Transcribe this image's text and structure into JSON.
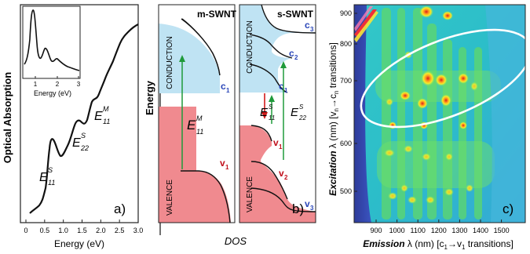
{
  "panel_a": {
    "ylabel": "Optical Absorption",
    "xlabel": "Energy (eV)",
    "panel_label": "a)",
    "xticks": [
      "0",
      "0.5",
      "1.0",
      "1.5",
      "2.0",
      "2.5",
      "3.0"
    ],
    "inset": {
      "xlabel": "Energy (eV)",
      "xticks": [
        "1",
        "2",
        "3"
      ]
    },
    "peaks": [
      {
        "label": "E",
        "sup": "S",
        "sub": "11"
      },
      {
        "label": "E",
        "sup": "S",
        "sub": "22"
      },
      {
        "label": "E",
        "sup": "M",
        "sub": "11"
      }
    ]
  },
  "panel_b": {
    "energy_label": "Energy",
    "dos_label": "DOS",
    "panel_label": "b)",
    "left": {
      "title": "m-SWNT",
      "conduction": "CONDUCTION",
      "valence": "VALENCE",
      "c1": "c",
      "c1_sub": "1",
      "v1": "v",
      "v1_sub": "1",
      "transition": {
        "label": "E",
        "sup": "M",
        "sub": "11"
      }
    },
    "right": {
      "title": "s-SWNT",
      "conduction": "CONDUCTION",
      "valence": "VALENCE",
      "c_levels": [
        {
          "l": "c",
          "s": "1"
        },
        {
          "l": "c",
          "s": "2"
        },
        {
          "l": "c",
          "s": "3"
        }
      ],
      "v_levels": [
        {
          "l": "v",
          "s": "1"
        },
        {
          "l": "v",
          "s": "2"
        },
        {
          "l": "v",
          "s": "3"
        }
      ],
      "t11": {
        "label": "E",
        "sup": "S",
        "sub": "11"
      },
      "t22": {
        "label": "E",
        "sup": "S",
        "sub": "22"
      }
    }
  },
  "panel_c": {
    "panel_label": "c)",
    "ylabel_parts": [
      "Excitation",
      " λ (nm) [v",
      "n",
      "→c",
      "n",
      " transitions]"
    ],
    "xlabel_parts": [
      "Emission",
      " λ (nm) [c",
      "1",
      "→v",
      "1",
      " transitions]"
    ],
    "yticks": [
      "500",
      "600",
      "700",
      "800",
      "900"
    ],
    "xticks": [
      "900",
      "1000",
      "1100",
      "1200",
      "1300",
      "1400",
      "1500"
    ]
  }
}
